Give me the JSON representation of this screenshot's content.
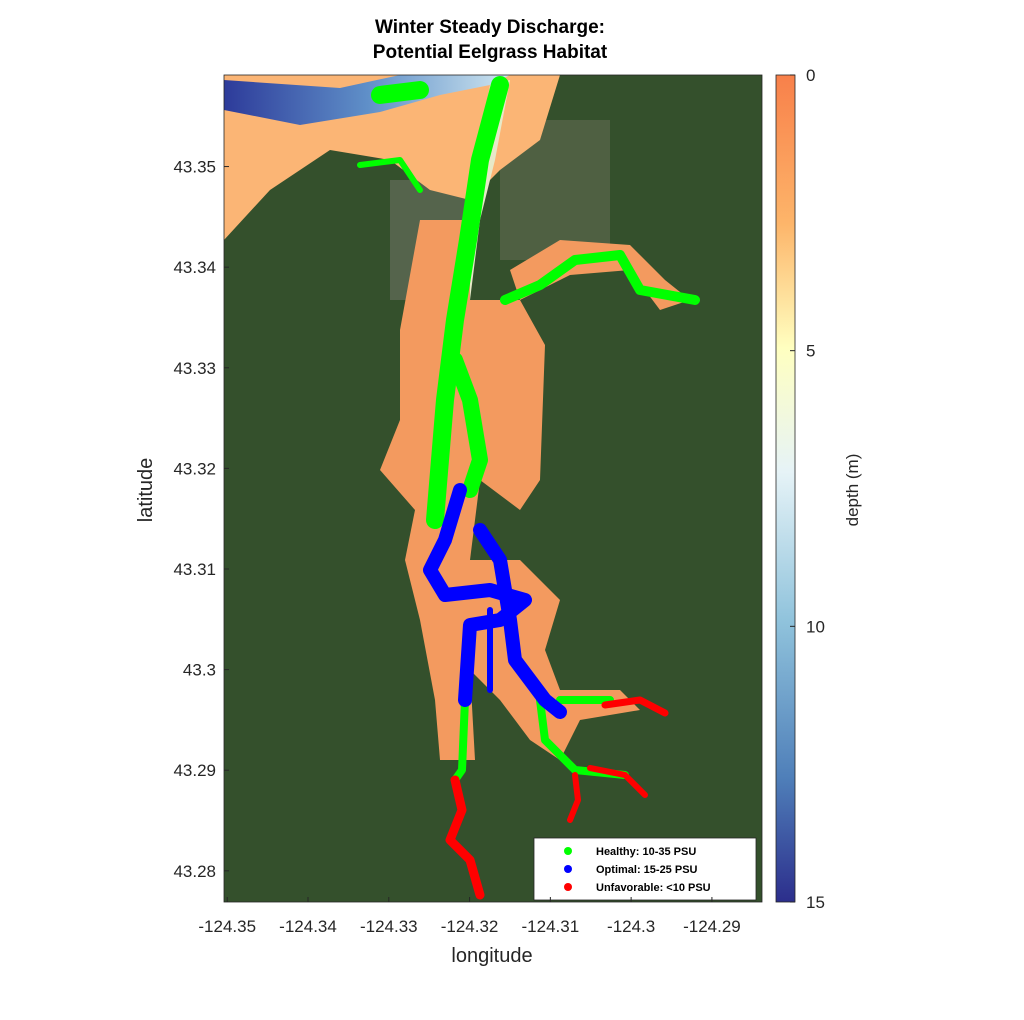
{
  "chart_data": {
    "type": "scatter",
    "title": [
      "Winter Steady Discharge:",
      "Potential Eelgrass Habitat"
    ],
    "xlabel": "longitude",
    "ylabel": "latitude",
    "xlim": [
      -124.3504,
      -124.2838
    ],
    "ylim": [
      43.2769,
      43.3591
    ],
    "xticks": [
      -124.35,
      -124.34,
      -124.33,
      -124.32,
      -124.31,
      -124.3,
      -124.29
    ],
    "xtick_labels": [
      "-124.35",
      "-124.34",
      "-124.33",
      "-124.32",
      "-124.31",
      "-124.3",
      "-124.29"
    ],
    "yticks": [
      43.28,
      43.29,
      43.3,
      43.31,
      43.32,
      43.33,
      43.34,
      43.35
    ],
    "ytick_labels": [
      "43.28",
      "43.29",
      "43.3",
      "43.31",
      "43.32",
      "43.33",
      "43.34",
      "43.35"
    ],
    "background": "satellite imagery with depth field",
    "grid": false,
    "legend_position": "bottom-right",
    "series": [
      {
        "name": "Healthy: 10-35 PSU",
        "color": "#00ff00"
      },
      {
        "name": "Optimal: 15-25 PSU",
        "color": "#0000ff"
      },
      {
        "name": "Unfavorable: <10 PSU",
        "color": "#ff0000"
      }
    ],
    "colorbar": {
      "label": "depth (m)",
      "range": [
        0,
        15
      ],
      "reversed": true,
      "ticks": [
        0,
        5,
        10,
        15
      ],
      "tick_labels": [
        "0",
        "5",
        "10",
        "15"
      ],
      "colors": [
        "#f8804a",
        "#fdc877",
        "#ffffc0",
        "#e6f3f7",
        "#90c3dc",
        "#4f7fb9",
        "#2c2e8c"
      ]
    }
  }
}
